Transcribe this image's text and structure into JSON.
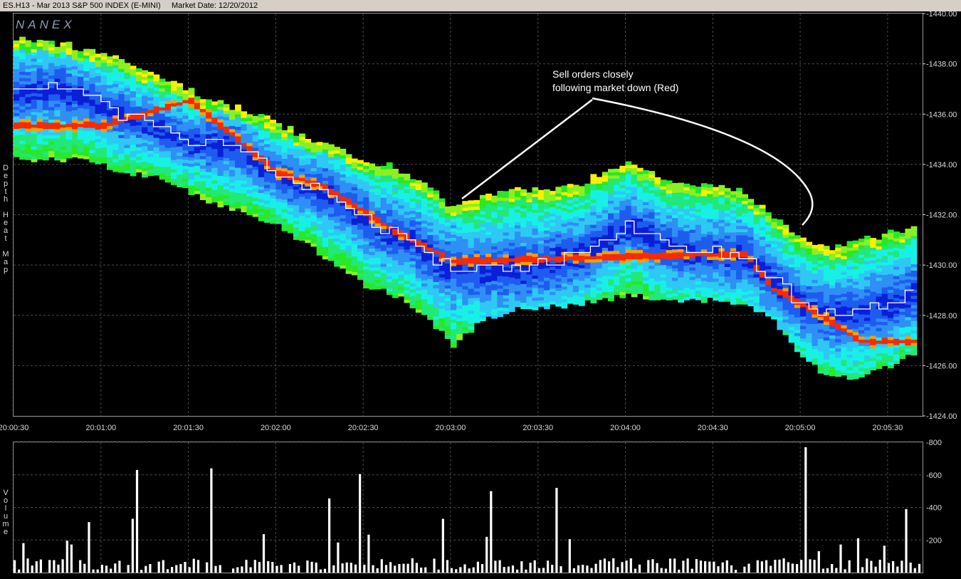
{
  "header": {
    "symbol": "ES.H13 - Mar 2013 S&P 500 INDEX (E-MINI)",
    "market_date": "Market Date: 12/20/2012"
  },
  "watermark": "NANEX",
  "heatmap_axis_label": "Depth Heat Map",
  "volume_axis_label": "Volume",
  "annotation": {
    "line1": "Sell orders closely",
    "line2": "following market down  (Red)"
  },
  "colors": {
    "background": "#000000",
    "grid": "#4a4a4a",
    "axis_text": "#d8d8d8",
    "price_line": "#ffffff",
    "volume_bar": "#ffffff",
    "heat_scale": [
      "#0a1fd8",
      "#1e5cf0",
      "#2f8ff5",
      "#2ec8f5",
      "#18f0e6",
      "#22e878",
      "#28e828",
      "#8cf020",
      "#f8f000",
      "#f8a000",
      "#f82a00"
    ]
  },
  "chart_data": [
    {
      "type": "heatmap",
      "title": "",
      "y_axis": {
        "ylim": [
          1424,
          1440
        ],
        "ticks": [
          1424,
          1426,
          1428,
          1430,
          1432,
          1434,
          1436,
          1438,
          1440
        ],
        "tick_labels": [
          "1424.00",
          "1426.00",
          "1428.00",
          "1430.00",
          "1432.00",
          "1434.00",
          "1436.00",
          "1438.00",
          "1440.00"
        ],
        "side": "right"
      },
      "x_axis": {
        "ticks": [
          "20:00:30",
          "20:01:00",
          "20:01:30",
          "20:02:00",
          "20:02:30",
          "20:03:00",
          "20:03:30",
          "20:04:00",
          "20:04:30",
          "20:05:00",
          "20:05:30"
        ],
        "xlim": [
          "20:00:30",
          "20:05:42"
        ]
      },
      "grid": true,
      "price_path": {
        "time": [
          "20:00:30",
          "20:00:45",
          "20:00:55",
          "20:01:05",
          "20:01:15",
          "20:01:30",
          "20:01:45",
          "20:01:55",
          "20:02:05",
          "20:02:15",
          "20:02:25",
          "20:02:35",
          "20:02:45",
          "20:02:55",
          "20:03:05",
          "20:03:15",
          "20:03:30",
          "20:03:45",
          "20:04:00",
          "20:04:15",
          "20:04:30",
          "20:04:40",
          "20:04:50",
          "20:05:00",
          "20:05:10",
          "20:05:20",
          "20:05:30",
          "20:05:38"
        ],
        "price": [
          1436.8,
          1436.9,
          1436.5,
          1435.9,
          1435.6,
          1434.8,
          1434.7,
          1433.8,
          1433.2,
          1432.9,
          1432.2,
          1431.3,
          1431.0,
          1430.0,
          1429.7,
          1429.8,
          1429.9,
          1430.4,
          1431.5,
          1430.6,
          1430.4,
          1430.3,
          1429.3,
          1428.3,
          1427.9,
          1428.1,
          1428.4,
          1428.8
        ]
      },
      "depth_band": {
        "time": [
          "20:00:30",
          "20:00:55",
          "20:01:05",
          "20:01:20",
          "20:01:35",
          "20:01:45",
          "20:02:00",
          "20:02:10",
          "20:02:20",
          "20:02:30",
          "20:02:40",
          "20:02:50",
          "20:03:00",
          "20:03:10",
          "20:03:20",
          "20:03:40",
          "20:04:00",
          "20:04:15",
          "20:04:30",
          "20:04:40",
          "20:04:50",
          "20:05:00",
          "20:05:10",
          "20:05:20",
          "20:05:30",
          "20:05:40"
        ],
        "upper": [
          1439.0,
          1438.5,
          1438.2,
          1437.4,
          1436.6,
          1436.2,
          1435.6,
          1434.9,
          1434.6,
          1434.1,
          1433.8,
          1433.2,
          1432.2,
          1432.7,
          1432.9,
          1433.0,
          1434.1,
          1433.2,
          1433.1,
          1432.9,
          1431.8,
          1431.0,
          1430.6,
          1431.0,
          1431.2,
          1431.4
        ],
        "lower": [
          1434.2,
          1434.2,
          1433.8,
          1433.4,
          1432.6,
          1432.2,
          1431.6,
          1430.8,
          1430.0,
          1429.2,
          1428.8,
          1428.1,
          1426.8,
          1427.8,
          1428.2,
          1428.4,
          1428.8,
          1428.6,
          1428.6,
          1428.4,
          1427.8,
          1426.3,
          1425.5,
          1425.6,
          1426.0,
          1426.6
        ]
      },
      "sell_orders_red": {
        "time": [
          "20:00:30",
          "20:01:00",
          "20:01:30",
          "20:02:00",
          "20:02:15",
          "20:02:40",
          "20:03:00",
          "20:04:40",
          "20:04:50",
          "20:05:00",
          "20:05:20",
          "20:05:40"
        ],
        "price": [
          1435.5,
          1435.5,
          1436.5,
          1433.6,
          1433.1,
          1431.3,
          1430.1,
          1430.4,
          1429.0,
          1428.4,
          1426.9,
          1426.9
        ]
      }
    },
    {
      "type": "bar",
      "title": "",
      "ylabel": "Volume",
      "y_axis": {
        "ylim": [
          0,
          800
        ],
        "ticks": [
          200,
          400,
          600,
          800
        ],
        "tick_labels": [
          "200",
          "400",
          "600",
          "800"
        ],
        "side": "right"
      },
      "spikes": [
        {
          "time": "20:01:12",
          "value": 630
        },
        {
          "time": "20:01:37",
          "value": 640
        },
        {
          "time": "20:02:28",
          "value": 605
        },
        {
          "time": "20:02:18",
          "value": 455
        },
        {
          "time": "20:02:57",
          "value": 330
        },
        {
          "time": "20:03:13",
          "value": 500
        },
        {
          "time": "20:03:36",
          "value": 520
        },
        {
          "time": "20:05:01",
          "value": 770
        },
        {
          "time": "20:05:36",
          "value": 390
        },
        {
          "time": "20:00:55",
          "value": 310
        },
        {
          "time": "20:01:10",
          "value": 330
        }
      ],
      "baseline_mean": 55
    }
  ]
}
